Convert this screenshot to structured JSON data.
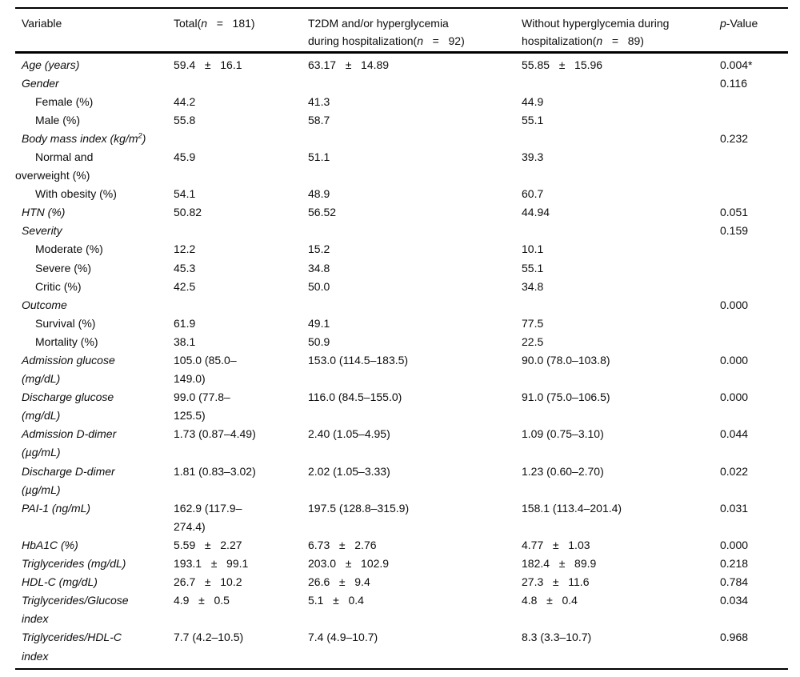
{
  "colors": {
    "background": "#ffffff",
    "text": "#0d0d0d",
    "rule": "#000000"
  },
  "header": {
    "variable": "Variable",
    "total": {
      "pre": "Total(",
      "n": "n",
      "post": "   =   181)"
    },
    "t2dm": {
      "line1": "T2DM and/or hyperglycemia",
      "line2_pre": "during hospitalization(",
      "n": "n",
      "line2_post": "   =   92)"
    },
    "without": {
      "line1": "Without hyperglycemia during",
      "line2_pre": "hospitalization(",
      "n": "n",
      "line2_post": "   =   89)"
    },
    "pvalue": {
      "p": "p",
      "rest": "-Value"
    }
  },
  "rows": [
    {
      "label": [
        "Age (years)"
      ],
      "c2": [
        "59.4   ±   16.1"
      ],
      "c3": [
        "63.17   ±   14.89"
      ],
      "c4": [
        "55.85   ±   15.96"
      ],
      "p": "0.004*"
    },
    {
      "label": [
        "Gender"
      ],
      "p": "0.116"
    },
    {
      "label": [
        "Female (%)"
      ],
      "c2": [
        "44.2"
      ],
      "c3": [
        "41.3"
      ],
      "c4": [
        "44.9"
      ]
    },
    {
      "label": [
        "Male (%)"
      ],
      "c2": [
        "55.8"
      ],
      "c3": [
        "58.7"
      ],
      "c4": [
        "55.1"
      ]
    },
    {
      "label_pre": "Body mass index (kg/m",
      "label_sup": "2",
      "label_post": ")",
      "p": "0.232"
    },
    {
      "label": [
        "Normal and",
        "overweight (%)"
      ],
      "c2": [
        "45.9"
      ],
      "c3": [
        "51.1"
      ],
      "c4": [
        "39.3"
      ]
    },
    {
      "label": [
        "With obesity (%)"
      ],
      "c2": [
        "54.1"
      ],
      "c3": [
        "48.9"
      ],
      "c4": [
        "60.7"
      ]
    },
    {
      "label": [
        "HTN (%)"
      ],
      "c2": [
        "50.82"
      ],
      "c3": [
        "56.52"
      ],
      "c4": [
        "44.94"
      ],
      "p": "0.051"
    },
    {
      "label": [
        "Severity"
      ],
      "p": "0.159"
    },
    {
      "label": [
        "Moderate (%)"
      ],
      "c2": [
        "12.2"
      ],
      "c3": [
        "15.2"
      ],
      "c4": [
        "10.1"
      ]
    },
    {
      "label": [
        "Severe (%)"
      ],
      "c2": [
        "45.3"
      ],
      "c3": [
        "34.8"
      ],
      "c4": [
        "55.1"
      ]
    },
    {
      "label": [
        "Critic (%)"
      ],
      "c2": [
        "42.5"
      ],
      "c3": [
        "50.0"
      ],
      "c4": [
        "34.8"
      ]
    },
    {
      "label": [
        "Outcome"
      ],
      "p": "0.000"
    },
    {
      "label": [
        "Survival (%)"
      ],
      "c2": [
        "61.9"
      ],
      "c3": [
        "49.1"
      ],
      "c4": [
        "77.5"
      ]
    },
    {
      "label": [
        "Mortality (%)"
      ],
      "c2": [
        "38.1"
      ],
      "c3": [
        "50.9"
      ],
      "c4": [
        "22.5"
      ]
    },
    {
      "label": [
        "Admission glucose",
        "(mg/dL)"
      ],
      "c2": [
        "105.0 (85.0–",
        "149.0)"
      ],
      "c3": [
        "153.0 (114.5–183.5)"
      ],
      "c4": [
        "90.0 (78.0–103.8)"
      ],
      "p": "0.000"
    },
    {
      "label": [
        "Discharge glucose",
        "(mg/dL)"
      ],
      "c2": [
        "99.0 (77.8–",
        "125.5)"
      ],
      "c3": [
        "116.0 (84.5–155.0)"
      ],
      "c4": [
        "91.0 (75.0–106.5)"
      ],
      "p": "0.000"
    },
    {
      "label": [
        "Admission D-dimer",
        "(µg/mL)"
      ],
      "c2": [
        "1.73 (0.87–4.49)"
      ],
      "c3": [
        "2.40 (1.05–4.95)"
      ],
      "c4": [
        "1.09 (0.75–3.10)"
      ],
      "p": "0.044"
    },
    {
      "label": [
        "Discharge D-dimer",
        "(µg/mL)"
      ],
      "c2": [
        "1.81 (0.83–3.02)"
      ],
      "c3": [
        "2.02 (1.05–3.33)"
      ],
      "c4": [
        "1.23 (0.60–2.70)"
      ],
      "p": "0.022"
    },
    {
      "label": [
        "PAI-1 (ng/mL)"
      ],
      "c2": [
        "162.9 (117.9–",
        "274.4)"
      ],
      "c3": [
        "197.5 (128.8–315.9)"
      ],
      "c4": [
        "158.1 (113.4–201.4)"
      ],
      "p": "0.031"
    },
    {
      "label": [
        "HbA1C (%)"
      ],
      "c2": [
        "5.59   ±   2.27"
      ],
      "c3": [
        "6.73   ±   2.76"
      ],
      "c4": [
        "4.77   ±   1.03"
      ],
      "p": "0.000"
    },
    {
      "label": [
        "Triglycerides (mg/dL)"
      ],
      "c2": [
        "193.1   ±   99.1"
      ],
      "c3": [
        "203.0   ±   102.9"
      ],
      "c4": [
        "182.4   ±   89.9"
      ],
      "p": "0.218"
    },
    {
      "label": [
        "HDL-C (mg/dL)"
      ],
      "c2": [
        "26.7   ±   10.2"
      ],
      "c3": [
        "26.6   ±   9.4"
      ],
      "c4": [
        "27.3   ±   11.6"
      ],
      "p": "0.784"
    },
    {
      "label": [
        "Triglycerides/Glucose",
        "index"
      ],
      "c2": [
        "4.9   ±   0.5"
      ],
      "c3": [
        "5.1   ±   0.4"
      ],
      "c4": [
        "4.8   ±   0.4"
      ],
      "p": "0.034"
    },
    {
      "label": [
        "Triglycerides/HDL-C",
        "index"
      ],
      "c2": [
        "7.7 (4.2–10.5)"
      ],
      "c3": [
        "7.4 (4.9–10.7)"
      ],
      "c4": [
        "8.3 (3.3–10.7)"
      ],
      "p": "0.968"
    }
  ]
}
